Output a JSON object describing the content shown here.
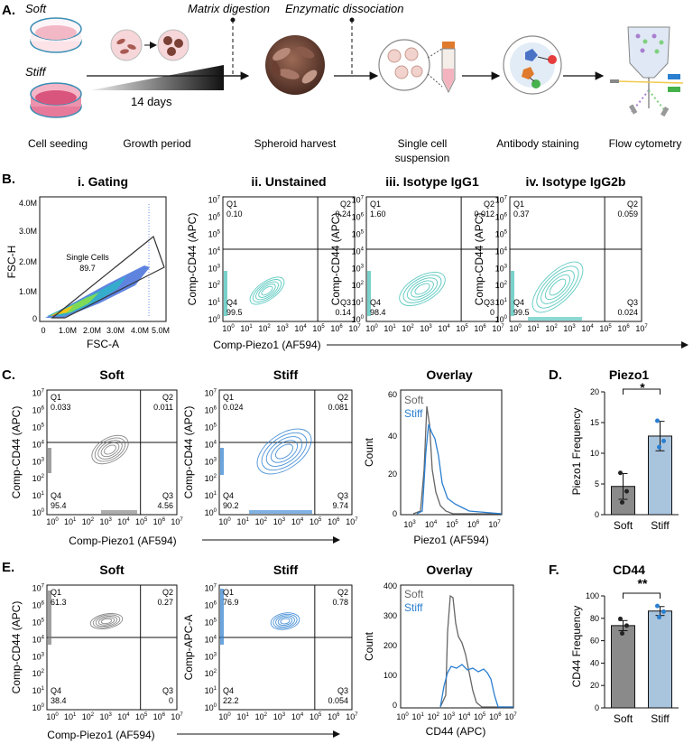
{
  "panelA": {
    "letter": "A.",
    "soft": "Soft",
    "stiff": "Stiff",
    "days": "14 days",
    "matrix": "Matrix digestion",
    "enzymatic": "Enzymatic dissociation",
    "steps": [
      "Cell seeding",
      "Growth period",
      "Spheroid harvest",
      "Single cell",
      "suspension",
      "Antibody staining",
      "Flow cytometry"
    ]
  },
  "panelB": {
    "letter": "B.",
    "gating": {
      "title": "i. Gating",
      "ylabel": "FSC-H",
      "xlabel": "FSC-A",
      "yticks": [
        "4.0M",
        "3.0M",
        "2.0M",
        "1.0M",
        "0"
      ],
      "xticks": [
        "0",
        "1.0M",
        "2.0M",
        "3.0M",
        "4.0M",
        "5.0M"
      ],
      "gate_label": "Single Cells",
      "gate_value": "89.7"
    },
    "plots": [
      {
        "title": "ii. Unstained",
        "q1": "Q1",
        "q1v": "0.10",
        "q2": "Q2",
        "q2v": "0.24",
        "q3": "Q3",
        "q3v": "0.14",
        "q4": "Q4",
        "q4v": "99.5"
      },
      {
        "title": "iii. Isotype IgG1",
        "q1": "Q1",
        "q1v": "1.60",
        "q2": "Q2",
        "q2v": "0.012",
        "q3": "Q3",
        "q3v": "0",
        "q4": "Q4",
        "q4v": "98.4"
      },
      {
        "title": "iv. Isotype IgG2b",
        "q1": "Q1",
        "q1v": "0.37",
        "q2": "Q2",
        "q2v": "0.059",
        "q3": "Q3",
        "q3v": "0.024",
        "q4": "Q4",
        "q4v": "99.5"
      }
    ],
    "ylabel": "Comp-CD44 (APC)",
    "xlabel": "Comp-Piezo1 (AF594)"
  },
  "panelC": {
    "letter": "C.",
    "soft": {
      "title": "Soft",
      "q1v": "0.033",
      "q2v": "0.011",
      "q3v": "4.56",
      "q4v": "95.4"
    },
    "stiff": {
      "title": "Stiff",
      "q1v": "0.024",
      "q2v": "0.081",
      "q3v": "9.74",
      "q4v": "90.2"
    },
    "overlay": {
      "title": "Overlay",
      "legend_soft": "Soft",
      "legend_stiff": "Stiff",
      "ylabel": "Count",
      "xlabel": "Piezo1 (AF594)",
      "yticks": [
        "60",
        "40",
        "20",
        "0"
      ]
    },
    "ylabel": "Comp-CD44 (APC)",
    "xlabel": "Comp-Piezo1 (AF594)"
  },
  "panelD": {
    "letter": "D.",
    "sig": "*",
    "chart_data": {
      "type": "bar",
      "title": "Piezo1",
      "categories": [
        "Soft",
        "Stiff"
      ],
      "values": [
        4.6,
        12.8
      ],
      "errors": [
        2.1,
        2.4
      ],
      "points": [
        [
          6.8,
          3.8,
          2.0
        ],
        [
          15.3,
          12.0,
          11.0
        ]
      ],
      "ylabel": "Piezo1 Frequency",
      "ylim": [
        0,
        20
      ],
      "yticks": [
        "0",
        "5",
        "10",
        "15",
        "20"
      ],
      "colors": [
        "#8a8a8a",
        "#a9c4dd"
      ]
    }
  },
  "panelE": {
    "letter": "E.",
    "soft": {
      "title": "Soft",
      "q1v": "61.3",
      "q2v": "0.27",
      "q3v": "0",
      "q4v": "38.4",
      "ylabel": "Comp-CD44 (APC)"
    },
    "stiff": {
      "title": "Stiff",
      "q1v": "76.9",
      "q2v": "0.78",
      "q3v": "0.054",
      "q4v": "22.2",
      "ylabel": "Comp-APC-A"
    },
    "overlay": {
      "title": "Overlay",
      "legend_soft": "Soft",
      "legend_stiff": "Stiff",
      "ylabel": "Count",
      "xlabel": "CD44 (APC)",
      "yticks": [
        "400",
        "300",
        "200",
        "100",
        "0"
      ]
    },
    "xlabel": "Comp-Piezo1 (AF594)"
  },
  "panelF": {
    "letter": "F.",
    "sig": "**",
    "chart_data": {
      "type": "bar",
      "title": "CD44",
      "categories": [
        "Soft",
        "Stiff"
      ],
      "values": [
        73.5,
        86.5
      ],
      "errors": [
        4.5,
        4.0
      ],
      "points": [
        [
          79.5,
          73.5,
          66.5
        ],
        [
          91.0,
          86.0,
          81.0
        ]
      ],
      "ylabel": "CD44 Frequency",
      "ylim": [
        0,
        100
      ],
      "yticks": [
        "0",
        "20",
        "40",
        "60",
        "80",
        "100"
      ],
      "colors": [
        "#8a8a8a",
        "#a9c4dd"
      ]
    }
  },
  "colors": {
    "teal": "#3fbfb5",
    "blue": "#2b7fd0",
    "gray": "#777777"
  }
}
